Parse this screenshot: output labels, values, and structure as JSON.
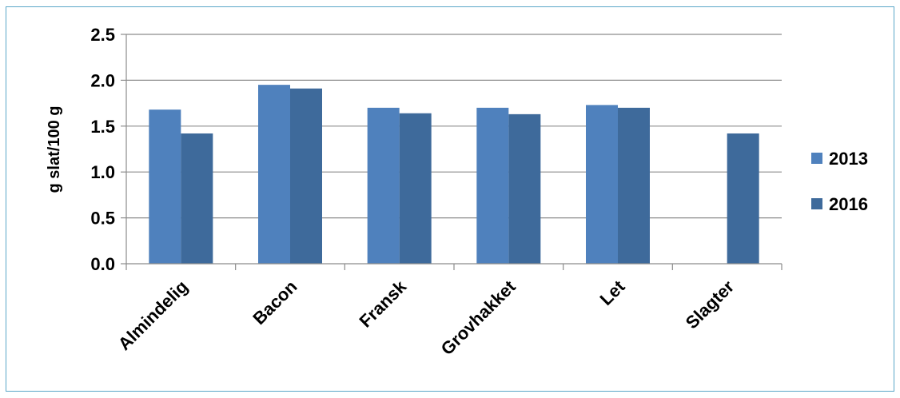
{
  "chart_data": {
    "type": "bar",
    "categories": [
      "Almindelig",
      "Bacon",
      "Fransk",
      "Grovhakket",
      "Let",
      "Slagter"
    ],
    "series": [
      {
        "name": "2013",
        "values": [
          1.68,
          1.95,
          1.7,
          1.7,
          1.73,
          null
        ],
        "color": "#4f81bd"
      },
      {
        "name": "2016",
        "values": [
          1.42,
          1.91,
          1.64,
          1.63,
          1.7,
          1.42
        ],
        "color": "#3e6a9b"
      }
    ],
    "ylabel": "g slat/100 g",
    "xlabel": "",
    "title": "",
    "ylim": [
      0,
      2.5
    ],
    "yticks": [
      "0.0",
      "0.5",
      "1.0",
      "1.5",
      "2.0",
      "2.5"
    ],
    "ytick_values": [
      0,
      0.5,
      1.0,
      1.5,
      2.0,
      2.5
    ],
    "grid": true,
    "legend_position": "right"
  }
}
